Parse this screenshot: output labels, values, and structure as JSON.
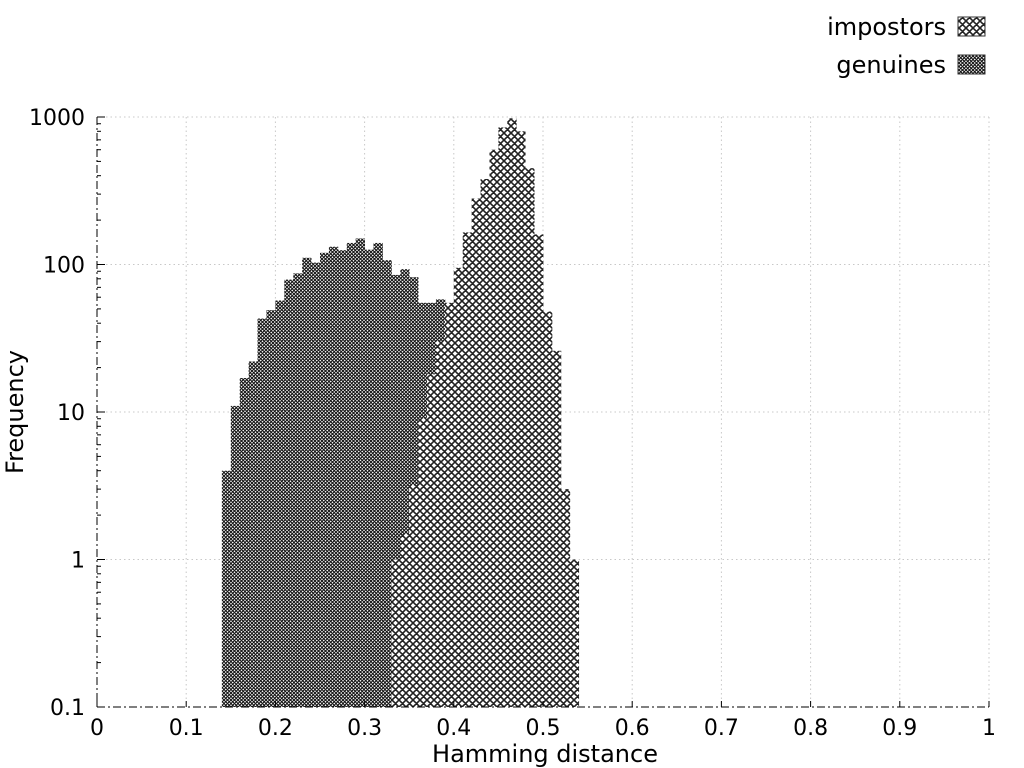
{
  "chart_data": {
    "type": "bar",
    "subtype": "histogram",
    "xlabel": "Hamming distance",
    "ylabel": "Frequency",
    "xlim": [
      0,
      1
    ],
    "ylim": [
      0.1,
      1000
    ],
    "yscale": "log",
    "grid": true,
    "legend_position": "top-right",
    "bin_width": 0.01,
    "x_ticks": [
      {
        "v": 0,
        "label": "0"
      },
      {
        "v": 0.1,
        "label": "0.1"
      },
      {
        "v": 0.2,
        "label": "0.2"
      },
      {
        "v": 0.3,
        "label": "0.3"
      },
      {
        "v": 0.4,
        "label": "0.4"
      },
      {
        "v": 0.5,
        "label": "0.5"
      },
      {
        "v": 0.6,
        "label": "0.6"
      },
      {
        "v": 0.7,
        "label": "0.7"
      },
      {
        "v": 0.8,
        "label": "0.8"
      },
      {
        "v": 0.9,
        "label": "0.9"
      },
      {
        "v": 1,
        "label": "1"
      }
    ],
    "y_ticks": [
      {
        "v": 0.1,
        "label": "0.1"
      },
      {
        "v": 1,
        "label": "1"
      },
      {
        "v": 10,
        "label": "10"
      },
      {
        "v": 100,
        "label": "100"
      },
      {
        "v": 1000,
        "label": "1000"
      }
    ],
    "series": [
      {
        "name": "genuines",
        "pattern": "fine-crosshatch",
        "bins": [
          {
            "x": 0.14,
            "y": 4
          },
          {
            "x": 0.15,
            "y": 11
          },
          {
            "x": 0.16,
            "y": 17
          },
          {
            "x": 0.17,
            "y": 22
          },
          {
            "x": 0.18,
            "y": 43
          },
          {
            "x": 0.19,
            "y": 49
          },
          {
            "x": 0.2,
            "y": 57
          },
          {
            "x": 0.21,
            "y": 79
          },
          {
            "x": 0.22,
            "y": 87
          },
          {
            "x": 0.23,
            "y": 111
          },
          {
            "x": 0.24,
            "y": 103
          },
          {
            "x": 0.25,
            "y": 120
          },
          {
            "x": 0.26,
            "y": 132
          },
          {
            "x": 0.27,
            "y": 125
          },
          {
            "x": 0.28,
            "y": 140
          },
          {
            "x": 0.29,
            "y": 150
          },
          {
            "x": 0.3,
            "y": 126
          },
          {
            "x": 0.31,
            "y": 140
          },
          {
            "x": 0.32,
            "y": 107
          },
          {
            "x": 0.33,
            "y": 85
          },
          {
            "x": 0.34,
            "y": 93
          },
          {
            "x": 0.35,
            "y": 82
          },
          {
            "x": 0.36,
            "y": 55
          },
          {
            "x": 0.37,
            "y": 55
          },
          {
            "x": 0.38,
            "y": 58
          },
          {
            "x": 0.39,
            "y": 45
          },
          {
            "x": 0.4,
            "y": 36
          },
          {
            "x": 0.41,
            "y": 19
          },
          {
            "x": 0.42,
            "y": 30
          },
          {
            "x": 0.43,
            "y": 18
          },
          {
            "x": 0.44,
            "y": 8
          },
          {
            "x": 0.45,
            "y": 3
          },
          {
            "x": 0.46,
            "y": 2
          },
          {
            "x": 0.47,
            "y": 2
          }
        ]
      },
      {
        "name": "impostors",
        "pattern": "coarse-crosshatch",
        "bins": [
          {
            "x": 0.33,
            "y": 1
          },
          {
            "x": 0.34,
            "y": 1.5
          },
          {
            "x": 0.35,
            "y": 3.2
          },
          {
            "x": 0.36,
            "y": 9
          },
          {
            "x": 0.37,
            "y": 18
          },
          {
            "x": 0.38,
            "y": 30
          },
          {
            "x": 0.39,
            "y": 55
          },
          {
            "x": 0.4,
            "y": 95
          },
          {
            "x": 0.41,
            "y": 165
          },
          {
            "x": 0.42,
            "y": 280
          },
          {
            "x": 0.43,
            "y": 380
          },
          {
            "x": 0.44,
            "y": 600
          },
          {
            "x": 0.45,
            "y": 850
          },
          {
            "x": 0.46,
            "y": 980
          },
          {
            "x": 0.47,
            "y": 800
          },
          {
            "x": 0.48,
            "y": 450
          },
          {
            "x": 0.49,
            "y": 160
          },
          {
            "x": 0.5,
            "y": 48
          },
          {
            "x": 0.51,
            "y": 26
          },
          {
            "x": 0.52,
            "y": 3
          },
          {
            "x": 0.53,
            "y": 1
          }
        ]
      }
    ]
  },
  "legend": [
    {
      "name": "impostors",
      "pattern": "coarse-crosshatch"
    },
    {
      "name": "genuines",
      "pattern": "fine-crosshatch"
    }
  ]
}
